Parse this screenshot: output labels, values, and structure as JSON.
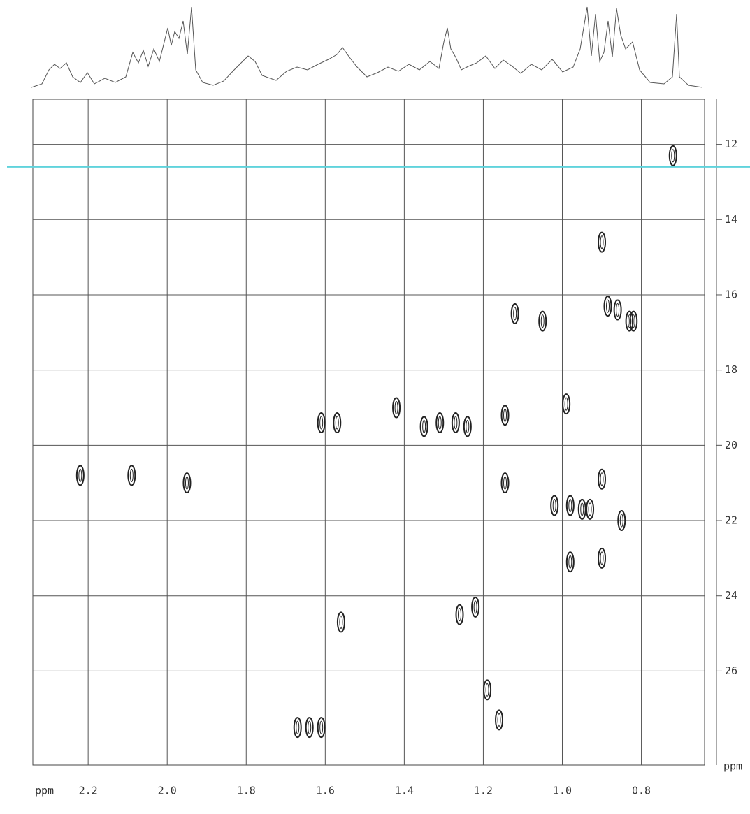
{
  "chart_data": {
    "type": "scatter",
    "x_label": "ppm",
    "y_label": "ppm",
    "xlim": [
      2.34,
      0.64
    ],
    "ylim": [
      10.8,
      28.5
    ],
    "xticks": [
      2.2,
      {
        "value": 2,
        "label": "2.0"
      },
      1.8,
      1.6,
      1.4,
      1.2,
      {
        "value": 1,
        "label": "1.0"
      },
      0.8
    ],
    "yticks": [
      12,
      14,
      16,
      18,
      20,
      22,
      24,
      26
    ],
    "grid": true,
    "color": "#222",
    "cursor_y": 12.6,
    "cursor_color": "#5fd3dc",
    "x": [
      0.72,
      0.9,
      0.885,
      0.86,
      0.83,
      0.82,
      1.05,
      1.12,
      0.99,
      1.61,
      1.57,
      1.42,
      1.35,
      1.31,
      1.27,
      1.24,
      1.145,
      2.22,
      2.09,
      1.95,
      1.145,
      0.9,
      1.02,
      0.98,
      0.95,
      0.93,
      0.85,
      0.98,
      0.9,
      1.26,
      1.22,
      1.56,
      1.19,
      1.16,
      1.67,
      1.64,
      1.61
    ],
    "values": [
      12.3,
      14.6,
      16.3,
      16.4,
      16.7,
      16.7,
      16.7,
      16.5,
      18.9,
      19.4,
      19.4,
      19.0,
      19.5,
      19.4,
      19.4,
      19.5,
      19.2,
      20.8,
      20.8,
      21.0,
      21.0,
      20.9,
      21.6,
      21.6,
      21.7,
      21.7,
      22.0,
      23.1,
      23.0,
      24.5,
      24.3,
      24.7,
      26.5,
      27.3,
      27.5,
      27.5,
      27.5
    ]
  }
}
